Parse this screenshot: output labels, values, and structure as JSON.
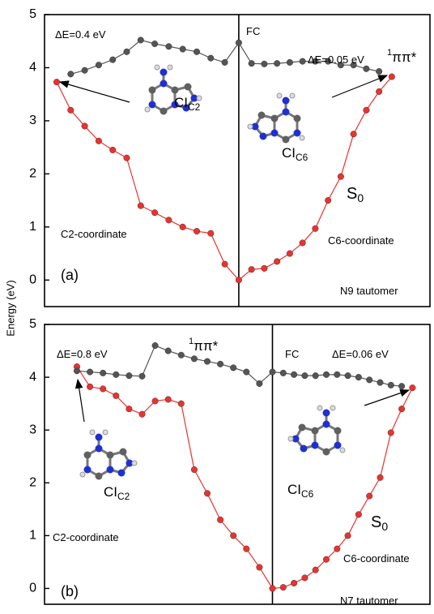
{
  "y_label": "Energy (eV)",
  "chart_data": [
    {
      "type": "line",
      "categories": [
        null,
        null,
        null,
        null,
        null,
        null,
        null,
        null,
        null,
        null,
        null,
        null,
        null,
        null,
        null,
        null,
        null,
        null,
        null,
        null,
        null,
        null,
        null,
        null,
        null,
        null
      ],
      "series": [
        {
          "color": "#e8332f",
          "values": [
            3.73,
            3.2,
            2.9,
            2.62,
            2.45,
            2.3,
            1.4,
            1.27,
            1.13,
            1.0,
            0.92,
            0.88,
            0.3,
            0.0,
            0.2,
            0.22,
            0.35,
            0.5,
            0.7,
            0.97,
            1.5,
            1.95,
            2.75,
            3.2,
            3.55,
            3.83
          ]
        },
        {
          "color": "#555555",
          "values": [
            null,
            3.88,
            3.95,
            4.05,
            4.15,
            4.3,
            4.52,
            4.45,
            4.4,
            4.35,
            4.3,
            4.18,
            4.1,
            4.47,
            4.08,
            4.07,
            4.08,
            4.1,
            4.12,
            4.12,
            4.12,
            4.05,
            4.05,
            3.98,
            3.93,
            null
          ]
        }
      ],
      "ylim": [
        -0.5,
        5
      ],
      "yticks": [
        0,
        1,
        2,
        3,
        4,
        5
      ],
      "annotations": [
        {
          "text": "ΔE=0.4 eV"
        },
        {
          "text": "FC"
        },
        {
          "text": "ΔE=0.05 eV"
        },
        {
          "sup": "1",
          "text": "ππ*",
          "color": "#666666"
        },
        {
          "text": "CI",
          "sub": "C2"
        },
        {
          "text": "CI",
          "sub": "C6"
        },
        {
          "text": "S",
          "sub": "0",
          "color": "#c00000"
        },
        {
          "text": "C2-coordinate"
        },
        {
          "text": "C6-coordinate"
        },
        {
          "text": "(a)"
        },
        {
          "text": "N9 tautomer"
        }
      ]
    },
    {
      "type": "line",
      "categories": [
        null,
        null,
        null,
        null,
        null,
        null,
        null,
        null,
        null,
        null,
        null,
        null,
        null,
        null,
        null,
        null,
        null,
        null,
        null,
        null,
        null,
        null,
        null,
        null,
        null,
        null,
        null,
        null,
        null
      ],
      "series": [
        {
          "color": "#e8332f",
          "values": [
            4.2,
            3.82,
            3.78,
            3.65,
            3.4,
            3.3,
            3.55,
            3.58,
            3.5,
            2.25,
            1.8,
            1.3,
            1.0,
            0.75,
            0.4,
            0.0,
            0.02,
            0.1,
            0.2,
            0.35,
            0.55,
            0.75,
            1.0,
            1.4,
            1.75,
            2.1,
            2.95,
            3.4,
            3.8
          ]
        },
        {
          "color": "#555555",
          "values": [
            4.12,
            4.1,
            4.08,
            4.05,
            4.03,
            4.02,
            4.6,
            4.5,
            4.42,
            4.35,
            4.3,
            4.25,
            4.18,
            4.1,
            3.88,
            4.1,
            4.08,
            4.05,
            4.03,
            4.03,
            4.05,
            4.05,
            4.03,
            4.0,
            3.95,
            3.9,
            3.85,
            3.83,
            null
          ]
        }
      ],
      "ylim": [
        -0.3,
        5
      ],
      "yticks": [
        0,
        1,
        2,
        3,
        4,
        5
      ],
      "annotations": [
        {
          "text": "ΔE=0.8 eV"
        },
        {
          "sup": "1",
          "text": "ππ*",
          "color": "#666666"
        },
        {
          "text": "FC"
        },
        {
          "text": "ΔE=0.06 eV"
        },
        {
          "text": "CI",
          "sub": "C2"
        },
        {
          "text": "CI",
          "sub": "C6"
        },
        {
          "text": "S",
          "sub": "0",
          "color": "#c00000"
        },
        {
          "text": "C2-coordinate"
        },
        {
          "text": "C6-coordinate"
        },
        {
          "text": "(b)"
        },
        {
          "text": "N7 tautomer"
        }
      ]
    }
  ]
}
